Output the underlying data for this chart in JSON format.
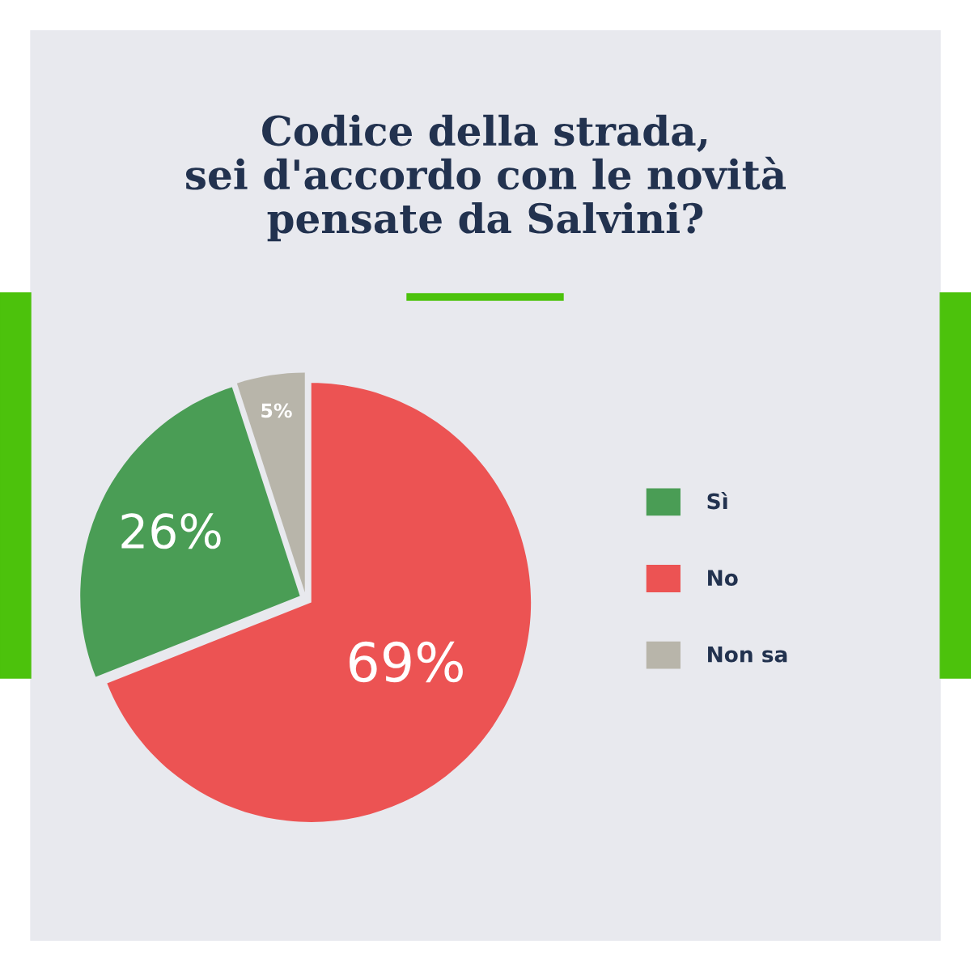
{
  "chart_data": {
    "type": "pie",
    "title": "Codice della strada,\nsei d'accordo con le novità\npensate da Salvini?",
    "categories": [
      "Sì",
      "No",
      "Non sa"
    ],
    "values": [
      26,
      69,
      5
    ],
    "colors": [
      "#4a9d55",
      "#ec5353",
      "#b8b5aa"
    ],
    "value_labels": [
      "26%",
      "69%",
      "5%"
    ],
    "legend": "right"
  }
}
